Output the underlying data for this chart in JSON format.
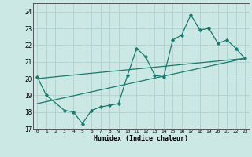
{
  "xlabel": "Humidex (Indice chaleur)",
  "bg_color": "#cce8e4",
  "line_color": "#1a7a6e",
  "grid_color": "#aed0cc",
  "xlim": [
    -0.5,
    23.5
  ],
  "ylim": [
    17,
    24.5
  ],
  "yticks": [
    17,
    18,
    19,
    20,
    21,
    22,
    23,
    24
  ],
  "xticks": [
    0,
    1,
    2,
    3,
    4,
    5,
    6,
    7,
    8,
    9,
    10,
    11,
    12,
    13,
    14,
    15,
    16,
    17,
    18,
    19,
    20,
    21,
    22,
    23
  ],
  "series1_x": [
    0,
    1,
    3,
    4,
    5,
    6,
    7,
    8,
    9,
    10,
    11,
    12,
    13,
    14,
    15,
    16,
    17,
    18,
    19,
    20,
    21,
    22,
    23
  ],
  "series1_y": [
    20.1,
    19.0,
    18.1,
    18.0,
    17.3,
    18.1,
    18.3,
    18.4,
    18.5,
    20.2,
    21.8,
    21.3,
    20.2,
    20.1,
    22.3,
    22.6,
    23.8,
    22.9,
    23.0,
    22.1,
    22.3,
    21.8,
    21.2
  ],
  "trend1_x": [
    0,
    23
  ],
  "trend1_y": [
    18.5,
    21.2
  ],
  "trend2_x": [
    0,
    23
  ],
  "trend2_y": [
    20.0,
    21.2
  ]
}
